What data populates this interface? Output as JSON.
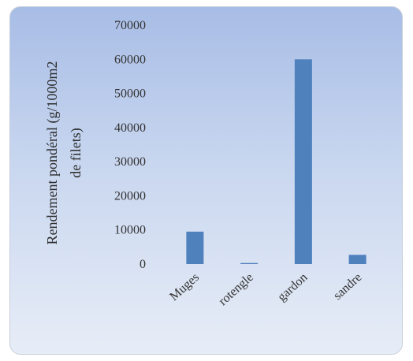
{
  "chart_data": {
    "type": "bar",
    "categories": [
      "Muges",
      "rotengle",
      "gardon",
      "sandre"
    ],
    "values": [
      9500,
      300,
      60000,
      2700
    ],
    "title": "",
    "xlabel": "",
    "ylabel_lines": [
      "Rendement pondéral (g/1000m2",
      "de filets)"
    ],
    "ylim": [
      0,
      70000
    ],
    "yticks": [
      0,
      10000,
      20000,
      30000,
      40000,
      50000,
      60000,
      70000
    ],
    "grid": false,
    "legend": "none",
    "bar_color": "#4f81bd"
  }
}
